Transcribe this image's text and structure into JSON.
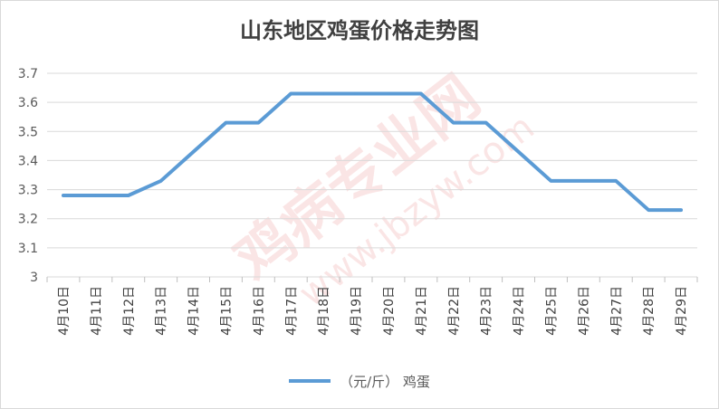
{
  "chart_data": {
    "type": "line",
    "title": "山东地区鸡蛋价格走势图",
    "xlabel": "",
    "ylabel": "",
    "categories": [
      "4月10日",
      "4月11日",
      "4月12日",
      "4月13日",
      "4月14日",
      "4月15日",
      "4月16日",
      "4月17日",
      "4月18日",
      "4月19日",
      "4月20日",
      "4月21日",
      "4月22日",
      "4月23日",
      "4月24日",
      "4月25日",
      "4月26日",
      "4月27日",
      "4月28日",
      "4月29日"
    ],
    "y_ticks": [
      "3",
      "3.1",
      "3.2",
      "3.3",
      "3.4",
      "3.5",
      "3.6",
      "3.7"
    ],
    "ylim": [
      3,
      3.7
    ],
    "grid": true,
    "legend_position": "bottom",
    "series": [
      {
        "name": "（元/斤） 鸡蛋",
        "values": [
          3.28,
          3.28,
          3.28,
          3.33,
          3.43,
          3.53,
          3.53,
          3.63,
          3.63,
          3.63,
          3.63,
          3.63,
          3.53,
          3.53,
          3.43,
          3.33,
          3.33,
          3.33,
          3.23,
          3.23
        ],
        "color": "#5b9bd5"
      }
    ]
  },
  "watermark": {
    "text": "鸡病专业网",
    "url": "www.jbzyw.com"
  }
}
